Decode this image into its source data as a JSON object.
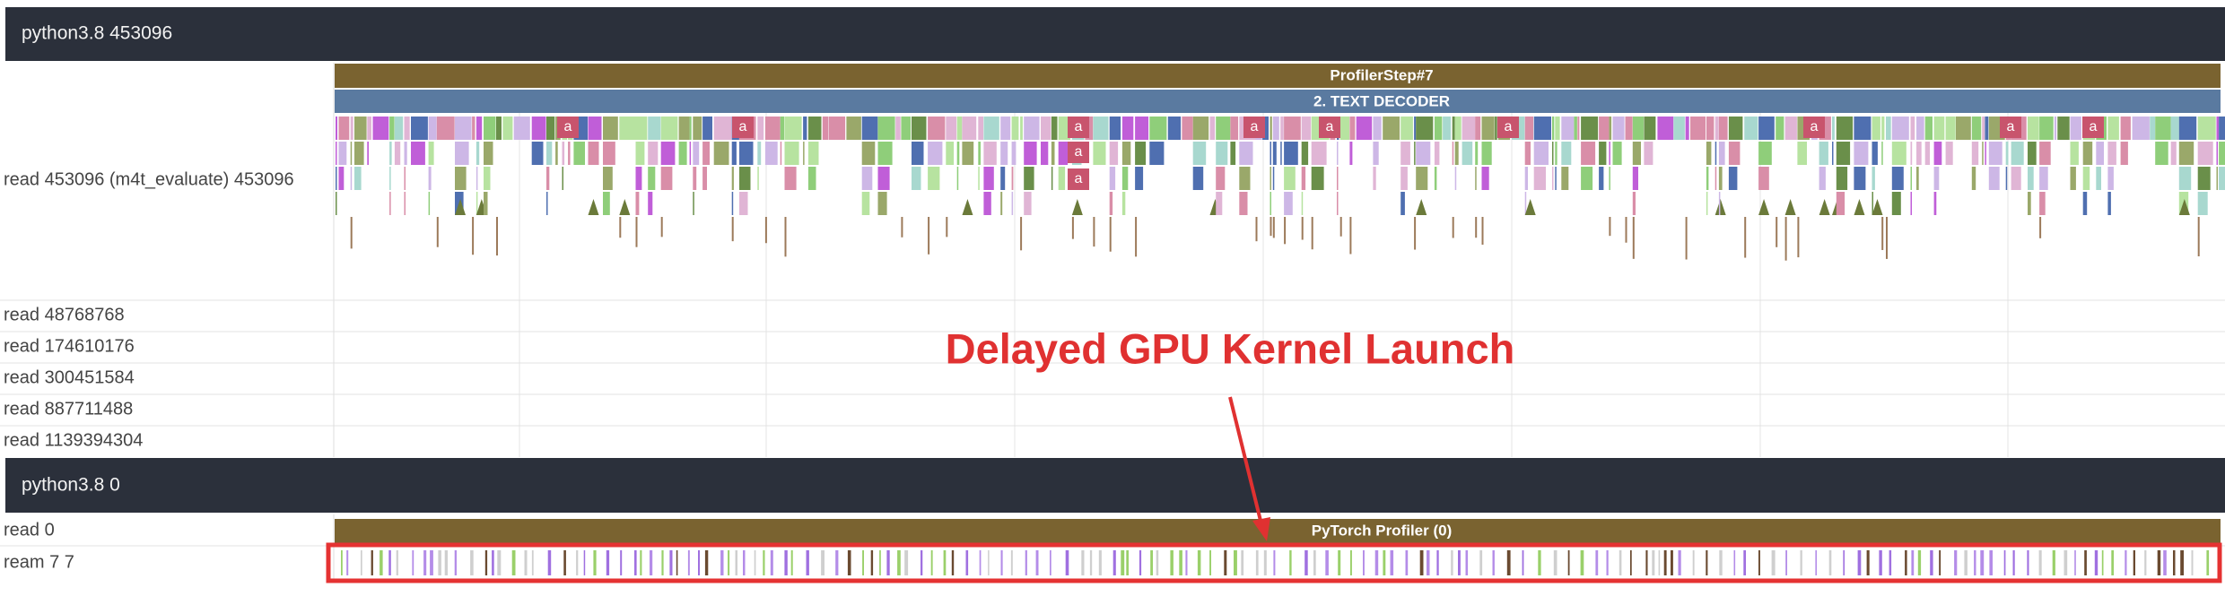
{
  "process_1": {
    "title": "python3.8 453096",
    "main_thread": {
      "label": "read 453096 (m4t_evaluate) 453096",
      "step_slice": "ProfilerStep#7",
      "section_slice": "2. TEXT DECODER",
      "slice_labels": [
        "a",
        "a",
        "a",
        "a",
        "a",
        "a",
        "a",
        "a",
        "a",
        "a",
        "a"
      ]
    },
    "threads": [
      "read 48768768",
      "read 174610176",
      "read 300451584",
      "read 887711488",
      "read 1139394304"
    ]
  },
  "annotation": "Delayed GPU Kernel Launch",
  "process_2": {
    "title": "python3.8 0",
    "threads": [
      {
        "label": "read 0",
        "slice": "PyTorch Profiler (0)"
      },
      {
        "label": "ream 7 7"
      }
    ]
  }
}
